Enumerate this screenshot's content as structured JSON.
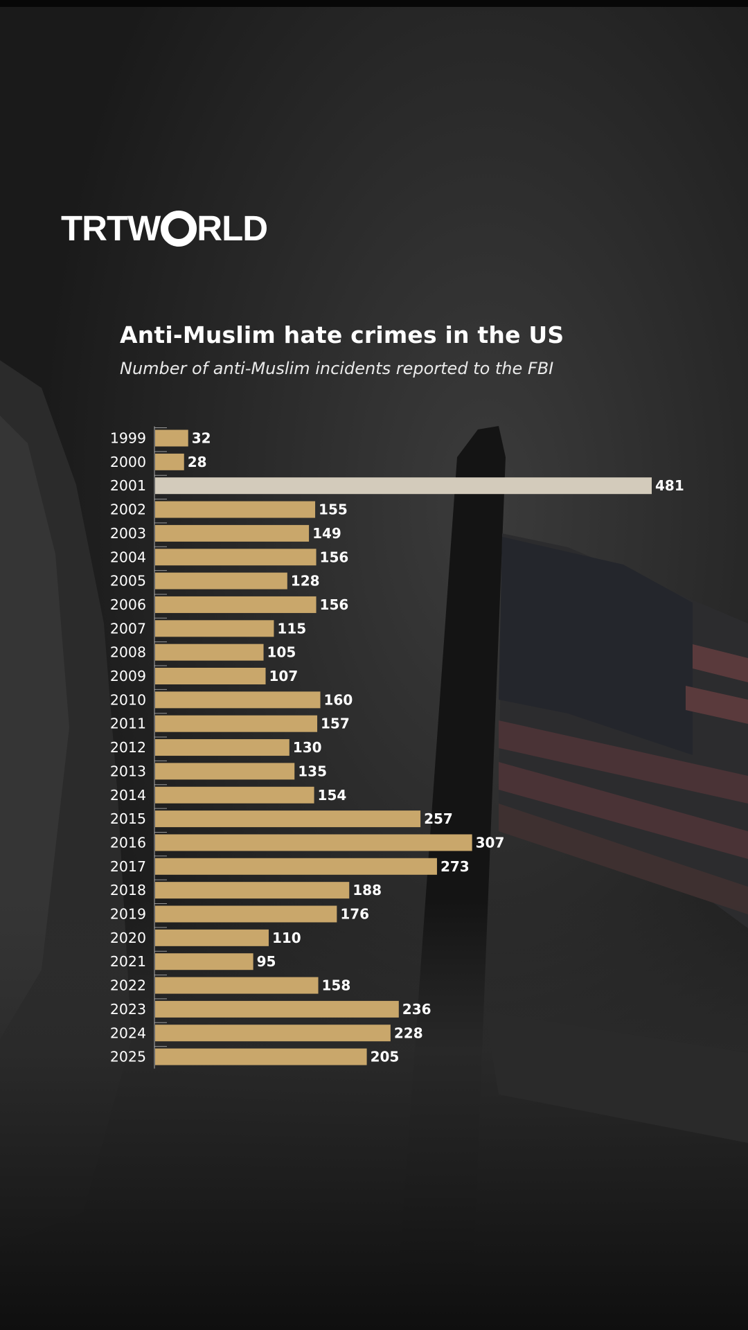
{
  "brand": {
    "logo_left": "TRTW",
    "logo_right": "RLD",
    "logo_alt": "TRTWORLD"
  },
  "colors": {
    "bar": "#c9a76b",
    "highlight_bar": "#d3cbbb",
    "text": "#ffffff",
    "background": "#1e1e1e"
  },
  "chart_data": {
    "type": "bar",
    "orientation": "horizontal",
    "title": "Anti-Muslim hate crimes in the US",
    "subtitle": "Number of anti-Muslim incidents reported to the FBI",
    "categories": [
      "1999",
      "2000",
      "2001",
      "2002",
      "2003",
      "2004",
      "2005",
      "2006",
      "2007",
      "2008",
      "2009",
      "2010",
      "2011",
      "2012",
      "2013",
      "2014",
      "2015",
      "2016",
      "2017",
      "2018",
      "2019",
      "2020",
      "2021",
      "2022",
      "2023",
      "2024",
      "2025"
    ],
    "values": [
      32,
      28,
      481,
      155,
      149,
      156,
      128,
      156,
      115,
      105,
      107,
      160,
      157,
      130,
      135,
      154,
      257,
      307,
      273,
      188,
      176,
      110,
      95,
      158,
      236,
      228,
      205
    ],
    "highlight_category": "2001",
    "xlim": [
      0,
      481
    ],
    "data_labels": true,
    "legend": "none",
    "grid": false
  }
}
